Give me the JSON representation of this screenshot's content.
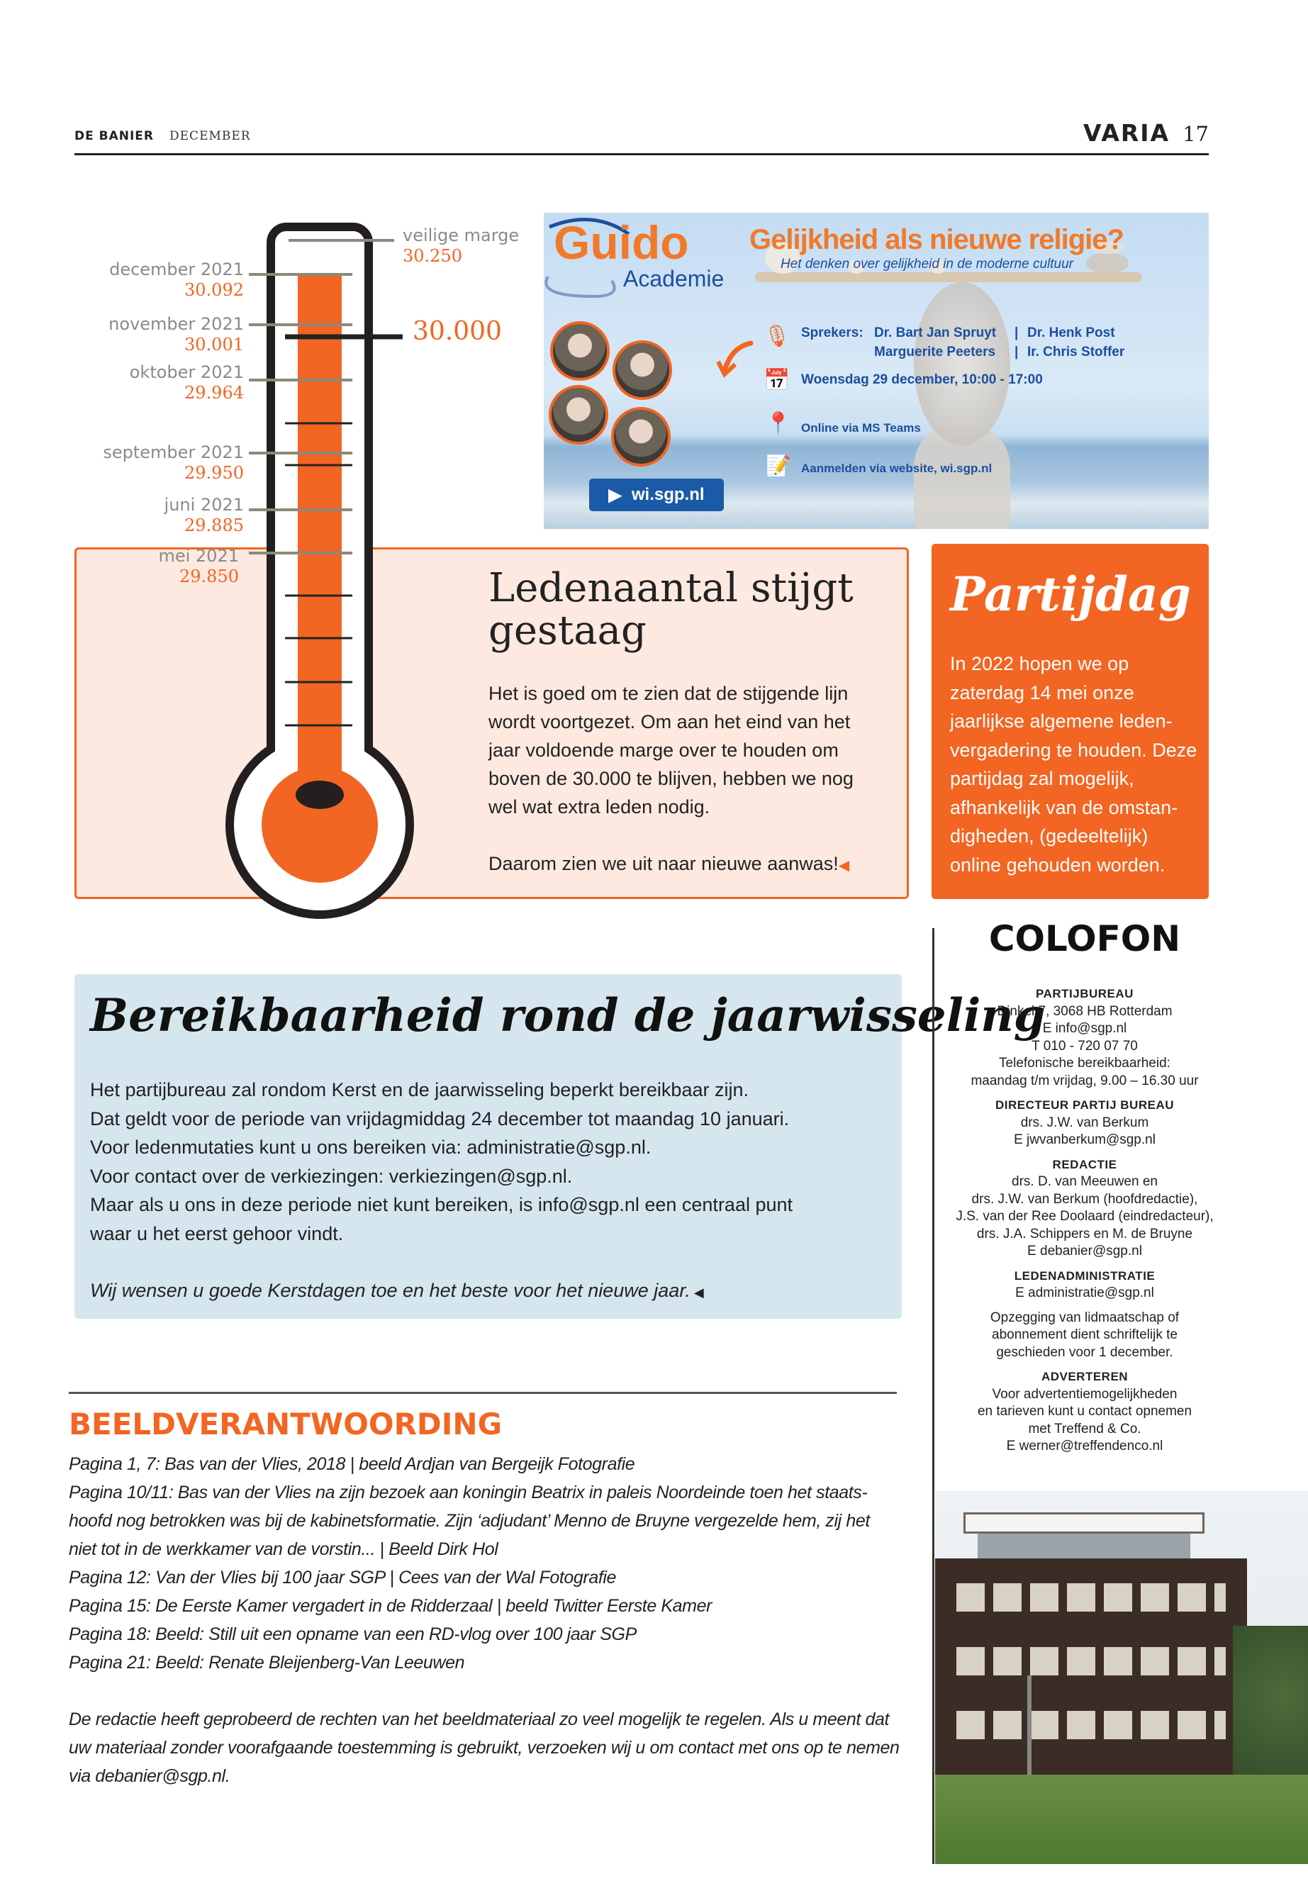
{
  "header": {
    "publication": "DE BANIER",
    "month": "DECEMBER",
    "section": "VARIA",
    "page": "17"
  },
  "thermometer": {
    "goal_value": "30.000",
    "margin": {
      "label": "veilige marge",
      "value": "30.250"
    },
    "entries": [
      {
        "label": "december 2021",
        "value": "30.092"
      },
      {
        "label": "november 2021",
        "value": "30.001"
      },
      {
        "label": "oktober 2021",
        "value": "29.964"
      },
      {
        "label": "september 2021",
        "value": "29.950"
      },
      {
        "label": "juni 2021",
        "value": "29.885"
      },
      {
        "label": "mei 2021",
        "value": "29.850"
      }
    ],
    "colors": {
      "fill": "#f26522",
      "outline": "#222222",
      "marker": "#8b8a7a"
    }
  },
  "banner": {
    "logo_top": "Guido",
    "logo_bottom": "Academie",
    "title": "Gelijkheid als nieuwe religie?",
    "subtitle": "Het denken over gelijkheid in de moderne cultuur",
    "speakers_label": "Sprekers:",
    "speakers": [
      "Dr. Bart Jan Spruyt",
      "Dr. Henk Post",
      "Marguerite Peeters",
      "Ir. Chris Stoffer"
    ],
    "separator": "|",
    "date": "Woensdag 29 december, 10:00 - 17:00",
    "location": "Online via MS Teams",
    "register": "Aanmelden via website, wi.sgp.nl",
    "button": "wi.sgp.nl"
  },
  "leden": {
    "title": "Ledenaantal stijgt gestaag",
    "body": "Het is goed om te zien dat de stijgende lijn wordt voortgezet. Om aan het eind van het jaar voldoende marge over te houden om boven de 30.000 te blijven, hebben we nog wel wat extra leden nodig.",
    "closing": "Daarom zien we uit naar nieuwe aanwas!"
  },
  "partijdag": {
    "title": "Partijdag",
    "body": "In 2022 hopen we op zaterdag 14 mei onze jaarlijkse algemene leden-vergadering te houden. Deze partijdag zal mogelijk, afhankelijk van de omstan-digheden, (gedeeltelijk) online gehouden worden."
  },
  "bereikbaarheid": {
    "title": "Bereikbaarheid rond de jaarwisseling",
    "lines": [
      "Het partijbureau zal rondom Kerst en de jaarwisseling beperkt bereikbaar zijn.",
      "Dat geldt voor de periode van vrijdagmiddag 24 december tot maandag 10 januari.",
      "Voor ledenmutaties kunt u ons bereiken via: administratie@sgp.nl.",
      "Voor contact over de verkiezingen: verkiezingen@sgp.nl.",
      "Maar als u ons in deze periode niet kunt bereiken, is info@sgp.nl een centraal punt waar u het eerst gehoor vindt."
    ],
    "wish": "Wij wensen u goede Kerstdagen toe en het beste voor het nieuwe jaar."
  },
  "colofon": {
    "title": "COLOFON",
    "sections": [
      {
        "heading": "PARTIJBUREAU",
        "lines": [
          "Dinkel 7, 3068 HB Rotterdam",
          "E info@sgp.nl",
          "T 010 - 720 07 70",
          "Telefonische bereikbaarheid:",
          "maandag t/m vrijdag, 9.00 – 16.30 uur"
        ]
      },
      {
        "heading": "DIRECTEUR PARTIJ BUREAU",
        "lines": [
          "drs. J.W. van Berkum",
          "E jwvanberkum@sgp.nl"
        ]
      },
      {
        "heading": "REDACTIE",
        "lines": [
          "drs. D. van Meeuwen en",
          "drs. J.W. van Berkum (hoofdredactie),",
          "J.S. van der Ree Doolaard (eindredacteur),",
          "drs. J.A. Schippers en M. de Bruyne",
          "E debanier@sgp.nl"
        ]
      },
      {
        "heading": "LEDENADMINISTRATIE",
        "lines": [
          "E administratie@sgp.nl"
        ]
      },
      {
        "heading": "",
        "lines": [
          "Opzegging van lidmaatschap of",
          "abonnement dient schriftelijk te",
          "geschieden voor 1 december."
        ]
      },
      {
        "heading": "ADVERTEREN",
        "lines": [
          "Voor advertentiemogelijkheden",
          "en tarieven kunt u contact opnemen",
          "met Treffend & Co.",
          "E werner@treffendenco.nl"
        ]
      }
    ]
  },
  "beeldverantwoording": {
    "title": "BEELDVERANTWOORDING",
    "items": [
      "Pagina 1, 7: Bas van der Vlies, 2018 | beeld Ardjan van Bergeijk Fotografie",
      "Pagina 10/11: Bas van der Vlies na zijn bezoek aan koningin Beatrix in paleis Noordeinde toen het staats-hoofd nog betrokken was bij de kabinetsformatie. Zijn ‘adjudant’ Menno de Bruyne vergezelde hem, zij het niet tot in de werkkamer van de vorstin... | Beeld Dirk Hol",
      "Pagina 12: Van der Vlies bij 100 jaar SGP | Cees van der Wal Fotografie",
      "Pagina 15: De Eerste Kamer vergadert in de Ridderzaal | beeld Twitter Eerste Kamer",
      "Pagina 18: Beeld: Still uit een opname van een RD-vlog over 100 jaar SGP",
      "Pagina 21: Beeld: Renate Bleijenberg-Van Leeuwen"
    ],
    "note": "De redactie heeft geprobeerd de rechten van het beeldmateriaal zo veel mogelijk te regelen. Als u meent dat uw materiaal zonder voorafgaande toestemming is gebruikt, verzoeken wij u om contact met ons op te nemen via debanier@sgp.nl."
  }
}
